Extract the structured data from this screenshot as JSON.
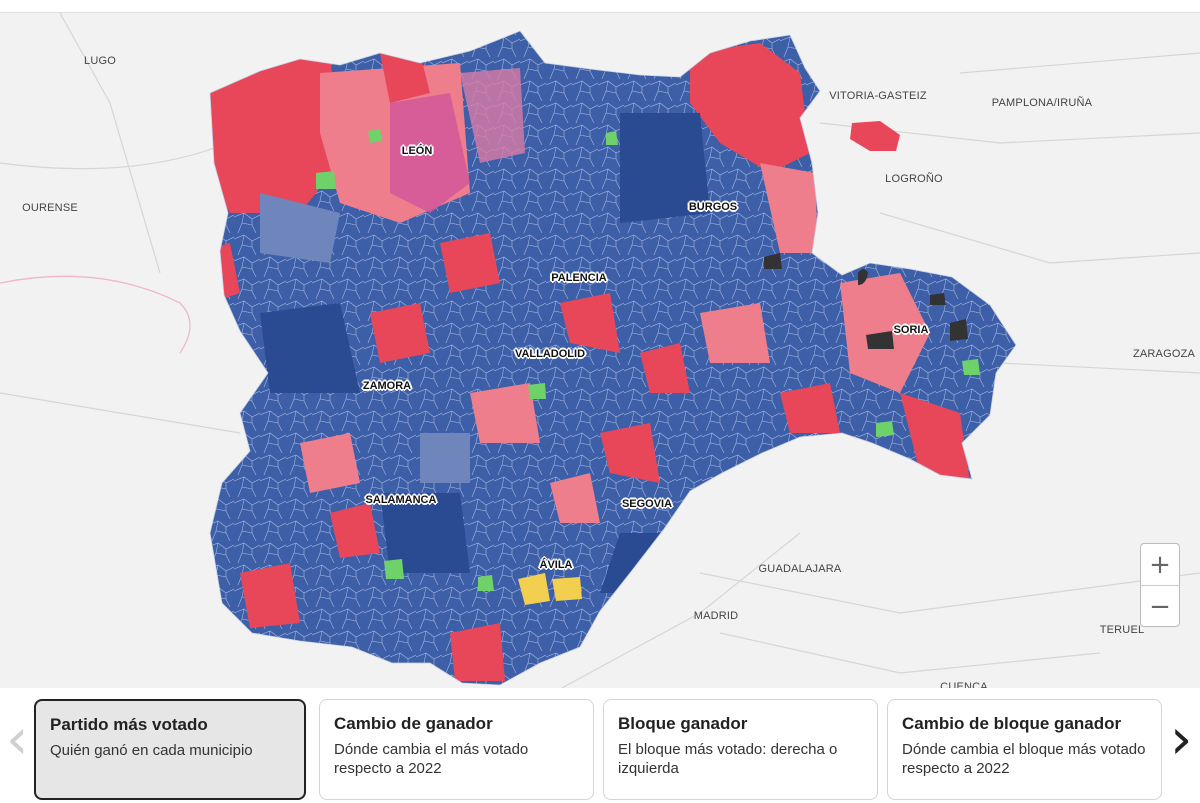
{
  "map": {
    "cities": [
      {
        "name": "LUGO"
      },
      {
        "name": "OURENSE"
      },
      {
        "name": "VITORIA-GASTEIZ"
      },
      {
        "name": "PAMPLONA/IRUÑA"
      },
      {
        "name": "LOGROÑO"
      },
      {
        "name": "ZARAGOZA"
      },
      {
        "name": "GUADALAJARA"
      },
      {
        "name": "MADRID"
      },
      {
        "name": "TERUEL"
      },
      {
        "name": "CUENCA"
      }
    ],
    "provinces": [
      {
        "name": "LEÓN"
      },
      {
        "name": "BURGOS"
      },
      {
        "name": "PALENCIA"
      },
      {
        "name": "SORIA"
      },
      {
        "name": "VALLADOLID"
      },
      {
        "name": "ZAMORA"
      },
      {
        "name": "SALAMANCA"
      },
      {
        "name": "SEGOVIA"
      },
      {
        "name": "ÁVILA"
      }
    ],
    "colors": {
      "pp_dark": "#2a4a92",
      "pp_mid": "#3d5fa8",
      "pp_light": "#6f86bd",
      "psoe": "#e8475a",
      "psoe_light": "#ef7e8c",
      "upl": "#d1579a",
      "vox": "#6fd16a",
      "xav": "#f2cf4f",
      "soria_ya": "#333333",
      "background": "#f2f2f2"
    },
    "zoom": {
      "in_icon": "plus-icon",
      "out_icon": "minus-icon",
      "in": "+",
      "out": "−"
    }
  },
  "cards": [
    {
      "title": "Partido más votado",
      "desc": "Quién ganó en cada municipio",
      "active": true
    },
    {
      "title": "Cambio de ganador",
      "desc": "Dónde cambia el más votado respecto a 2022",
      "active": false
    },
    {
      "title": "Bloque ganador",
      "desc": "El bloque más votado: derecha o izquierda",
      "active": false
    },
    {
      "title": "Cambio de bloque ganador",
      "desc": "Dónde cambia el bloque más votado respecto a 2022",
      "active": false
    }
  ],
  "nav": {
    "prev": "‹",
    "next": "›",
    "prev_icon": "chevron-left-icon",
    "next_icon": "chevron-right-icon"
  }
}
